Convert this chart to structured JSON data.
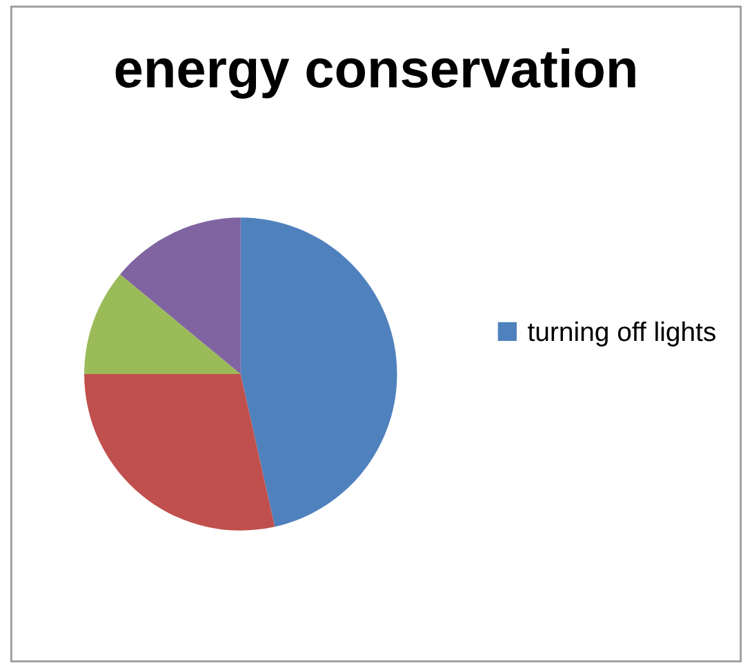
{
  "chart_data": {
    "type": "pie",
    "title": "energy conservation",
    "categories": [
      "turning off lights",
      null,
      null,
      null
    ],
    "values": [
      46.5,
      28.5,
      11,
      14
    ],
    "colors": [
      "#4f81bd",
      "#c0504d",
      "#9bbb59",
      "#8064a2"
    ],
    "legend": "right"
  }
}
